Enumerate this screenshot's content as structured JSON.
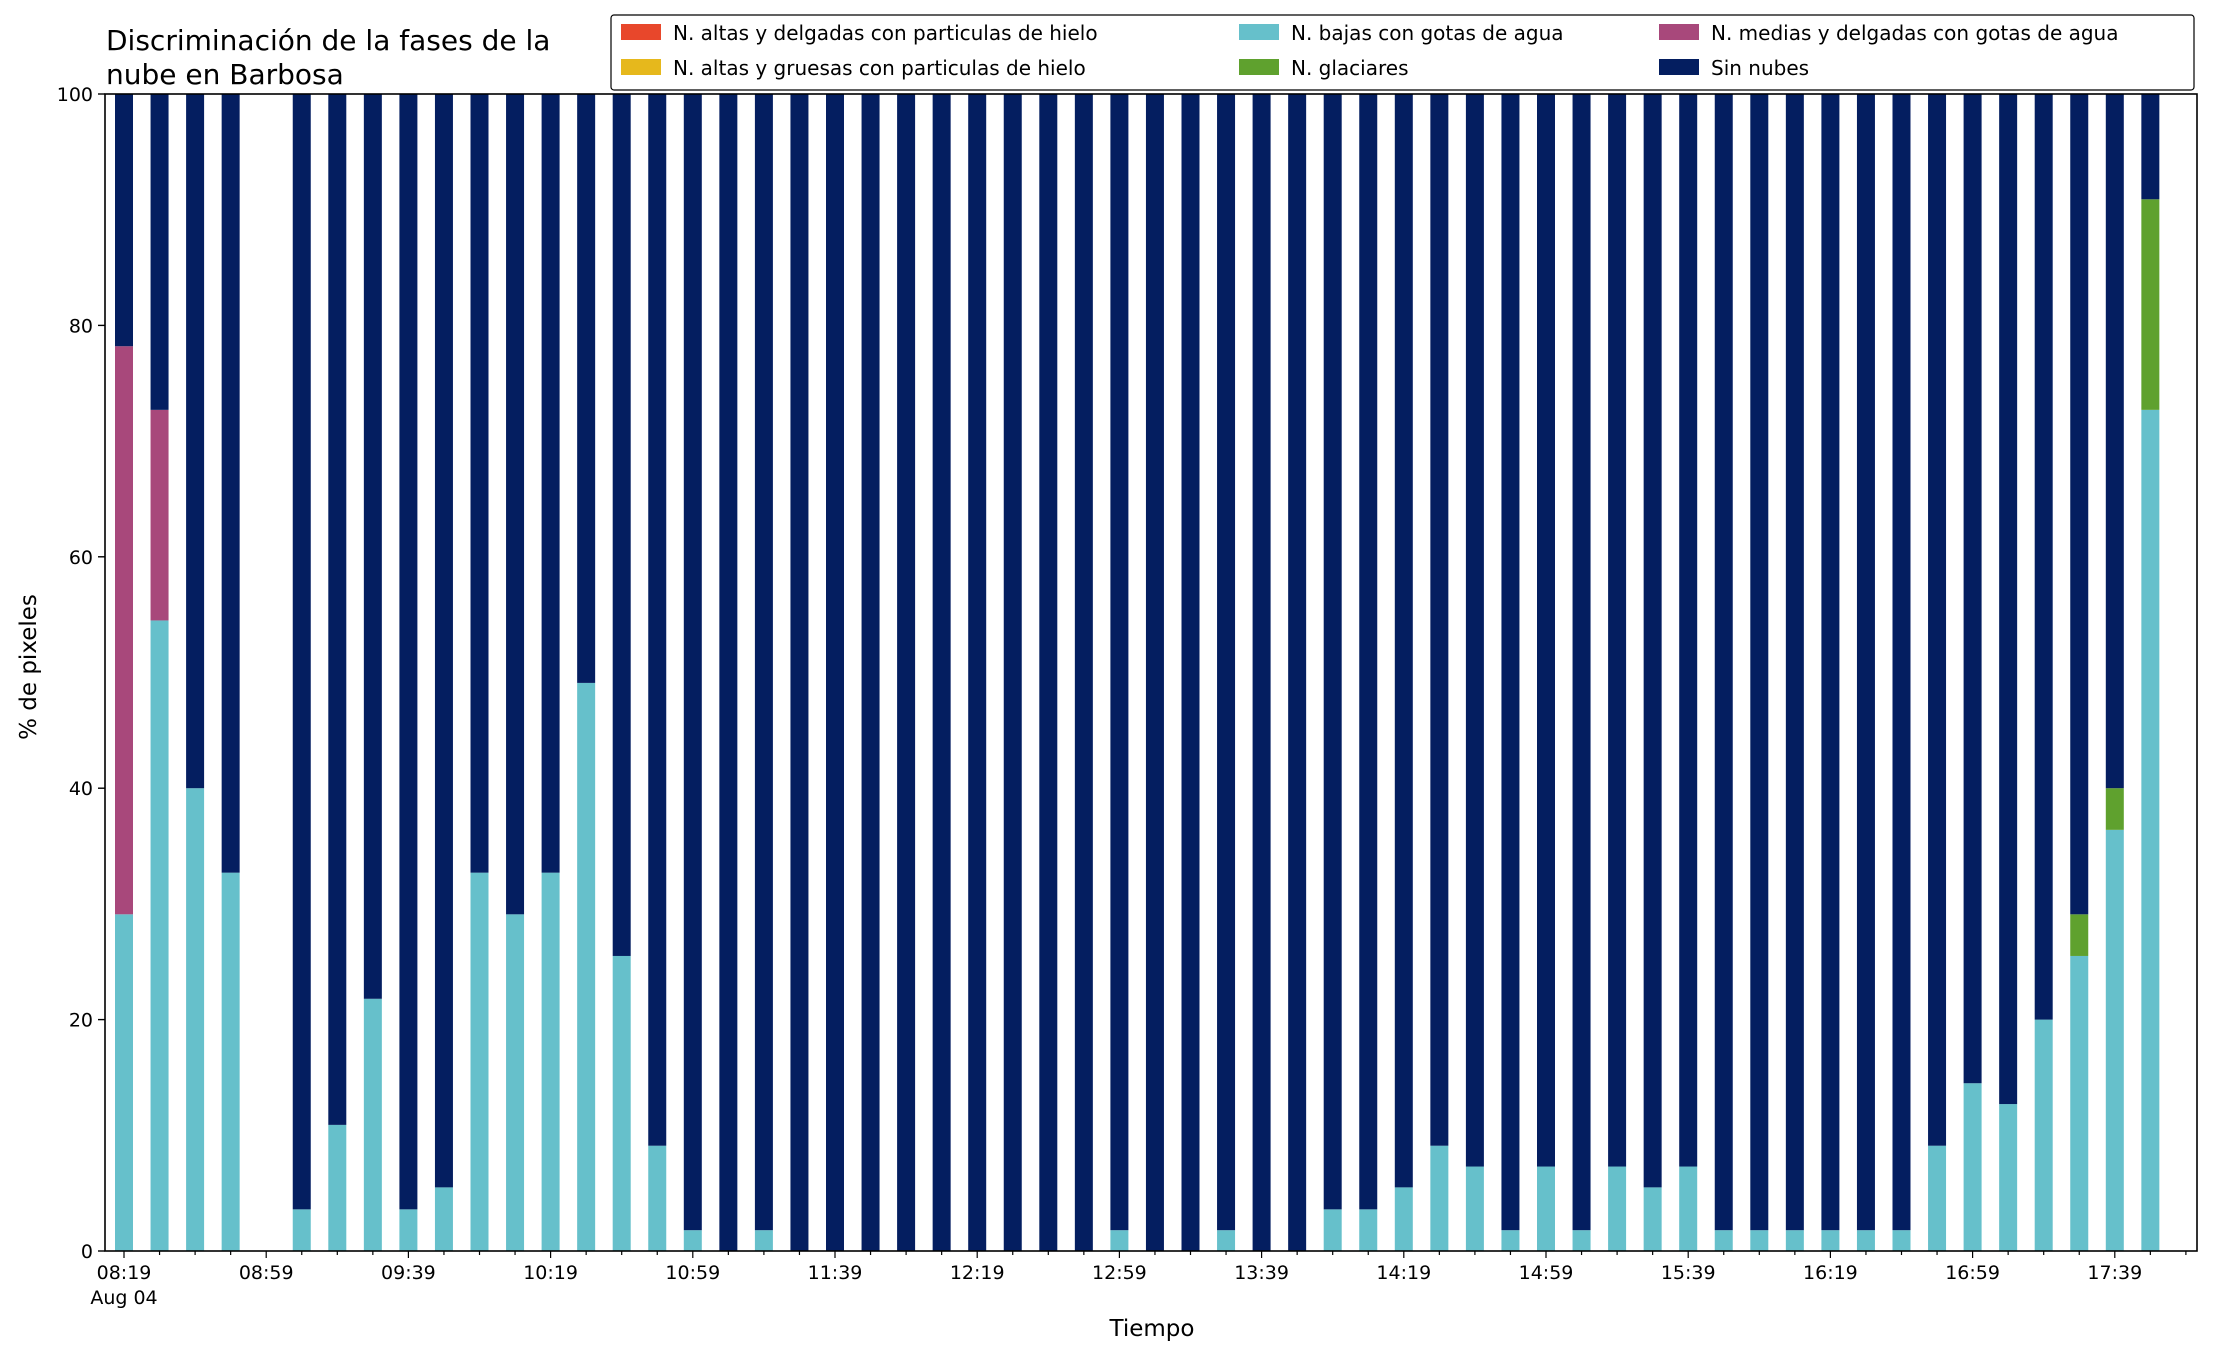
{
  "chart_data": {
    "type": "bar",
    "stacked": true,
    "title_lines": [
      "Discriminación de la fases de la",
      "nube en Barbosa"
    ],
    "xlabel": "Tiempo",
    "ylabel": "% de pixeles",
    "ylim": [
      0,
      100
    ],
    "yticks": [
      0,
      20,
      40,
      60,
      80,
      100
    ],
    "grid": false,
    "legend_position": "top-right",
    "x": [
      "08:19",
      "08:29",
      "08:39",
      "08:49",
      "08:59",
      "09:09",
      "09:19",
      "09:29",
      "09:39",
      "09:49",
      "09:59",
      "10:09",
      "10:19",
      "10:29",
      "10:39",
      "10:49",
      "10:59",
      "11:09",
      "11:19",
      "11:29",
      "11:39",
      "11:49",
      "11:59",
      "12:09",
      "12:19",
      "12:29",
      "12:39",
      "12:49",
      "12:59",
      "13:09",
      "13:19",
      "13:29",
      "13:39",
      "13:49",
      "13:59",
      "14:09",
      "14:19",
      "14:29",
      "14:39",
      "14:49",
      "14:59",
      "15:09",
      "15:19",
      "15:29",
      "15:39",
      "15:49",
      "15:59",
      "16:09",
      "16:19",
      "16:29",
      "16:39",
      "16:49",
      "16:59",
      "17:09",
      "17:19",
      "17:29",
      "17:39",
      "17:49"
    ],
    "x_tick_labels": [
      {
        "index": 0,
        "label": "08:19",
        "sublabel": "Aug 04"
      },
      {
        "index": 4,
        "label": "08:59"
      },
      {
        "index": 8,
        "label": "09:39"
      },
      {
        "index": 12,
        "label": "10:19"
      },
      {
        "index": 16,
        "label": "10:59"
      },
      {
        "index": 20,
        "label": "11:39"
      },
      {
        "index": 24,
        "label": "12:19"
      },
      {
        "index": 28,
        "label": "12:59"
      },
      {
        "index": 32,
        "label": "13:39"
      },
      {
        "index": 36,
        "label": "14:19"
      },
      {
        "index": 40,
        "label": "14:59"
      },
      {
        "index": 44,
        "label": "15:39"
      },
      {
        "index": 48,
        "label": "16:19"
      },
      {
        "index": 52,
        "label": "16:59"
      },
      {
        "index": 56,
        "label": "17:39"
      }
    ],
    "empty_indices": [
      4
    ],
    "series": [
      {
        "name": "N. altas y delgadas con particulas de hielo",
        "color": "#e8472b",
        "values": [
          0,
          0,
          0,
          0,
          0,
          0,
          0,
          0,
          0,
          0,
          0,
          0,
          0,
          0,
          0,
          0,
          0,
          0,
          0,
          0,
          0,
          0,
          0,
          0,
          0,
          0,
          0,
          0,
          0,
          0,
          0,
          0,
          0,
          0,
          0,
          0,
          0,
          0,
          0,
          0,
          0,
          0,
          0,
          0,
          0,
          0,
          0,
          0,
          0,
          0,
          0,
          0,
          0,
          0,
          0,
          0,
          0,
          0
        ]
      },
      {
        "name": "N. altas y gruesas con particulas de hielo",
        "color": "#e6b81c",
        "values": [
          0,
          0,
          0,
          0,
          0,
          0,
          0,
          0,
          0,
          0,
          0,
          0,
          0,
          0,
          0,
          0,
          0,
          0,
          0,
          0,
          0,
          0,
          0,
          0,
          0,
          0,
          0,
          0,
          0,
          0,
          0,
          0,
          0,
          0,
          0,
          0,
          0,
          0,
          0,
          0,
          0,
          0,
          0,
          0,
          0,
          0,
          0,
          0,
          0,
          0,
          0,
          0,
          0,
          0,
          0,
          0,
          0,
          0
        ]
      },
      {
        "name": "N. bajas con gotas de agua",
        "color": "#66c0cb",
        "values": [
          29.1,
          54.5,
          40,
          32.7,
          0,
          3.6,
          10.9,
          21.8,
          3.6,
          5.5,
          32.7,
          29.1,
          32.7,
          49.1,
          25.5,
          9.1,
          1.8,
          0,
          1.8,
          0,
          0,
          0,
          0,
          0,
          0,
          0,
          0,
          0,
          1.8,
          0,
          0,
          1.8,
          0,
          0,
          3.6,
          3.6,
          5.5,
          9.1,
          7.3,
          1.8,
          7.3,
          1.8,
          7.3,
          5.5,
          7.3,
          1.8,
          1.8,
          1.8,
          1.8,
          1.8,
          1.8,
          9.1,
          14.5,
          12.7,
          20,
          25.5,
          36.4,
          72.7
        ]
      },
      {
        "name": "N. glaciares",
        "color": "#5fa12e",
        "values": [
          0,
          0,
          0,
          0,
          0,
          0,
          0,
          0,
          0,
          0,
          0,
          0,
          0,
          0,
          0,
          0,
          0,
          0,
          0,
          0,
          0,
          0,
          0,
          0,
          0,
          0,
          0,
          0,
          0,
          0,
          0,
          0,
          0,
          0,
          0,
          0,
          0,
          0,
          0,
          0,
          0,
          0,
          0,
          0,
          0,
          0,
          0,
          0,
          0,
          0,
          0,
          0,
          0,
          0,
          0,
          3.6,
          3.6,
          18.2
        ]
      },
      {
        "name": "N. medias y delgadas con gotas de agua",
        "color": "#a8487b",
        "values": [
          49.1,
          18.2,
          0,
          0,
          0,
          0,
          0,
          0,
          0,
          0,
          0,
          0,
          0,
          0,
          0,
          0,
          0,
          0,
          0,
          0,
          0,
          0,
          0,
          0,
          0,
          0,
          0,
          0,
          0,
          0,
          0,
          0,
          0,
          0,
          0,
          0,
          0,
          0,
          0,
          0,
          0,
          0,
          0,
          0,
          0,
          0,
          0,
          0,
          0,
          0,
          0,
          0,
          0,
          0,
          0,
          0,
          0,
          0
        ]
      },
      {
        "name": "Sin nubes",
        "color": "#041e60",
        "values": [
          21.8,
          27.3,
          60,
          67.3,
          0,
          96.4,
          89.1,
          78.2,
          96.4,
          94.5,
          67.3,
          70.9,
          67.3,
          50.9,
          74.5,
          90.9,
          98.2,
          100,
          98.2,
          100,
          100,
          100,
          100,
          100,
          100,
          100,
          100,
          100,
          98.2,
          100,
          100,
          98.2,
          100,
          100,
          96.4,
          96.4,
          94.5,
          90.9,
          92.7,
          98.2,
          92.7,
          98.2,
          92.7,
          94.5,
          92.7,
          98.2,
          98.2,
          98.2,
          98.2,
          98.2,
          98.2,
          90.9,
          85.5,
          87.3,
          80,
          70.9,
          60,
          9.1
        ]
      }
    ],
    "legend_order": [
      0,
      1,
      2,
      3,
      4,
      5
    ]
  }
}
